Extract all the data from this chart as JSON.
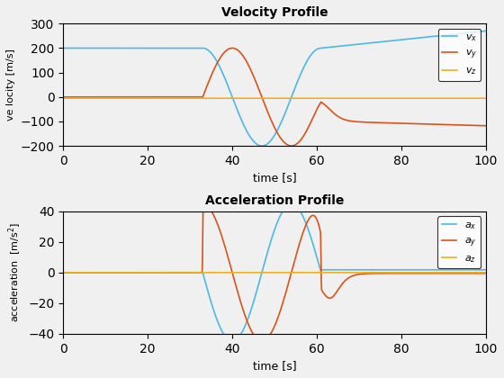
{
  "title_vel": "Velocity Profile",
  "title_acc": "Acceleration Profile",
  "xlabel": "time [s]",
  "ylabel_vel": "ve locity [m/s]",
  "ylabel_acc": "acceleration  [m/s²]",
  "xlim": [
    0,
    100
  ],
  "ylim_vel": [
    -200,
    300
  ],
  "ylim_acc": [
    -40,
    40
  ],
  "color_x": "#4cb8e6",
  "color_y": "#d95319",
  "color_z": "#edb120",
  "lw": 1.2,
  "bg_color": "#f0f0f0"
}
